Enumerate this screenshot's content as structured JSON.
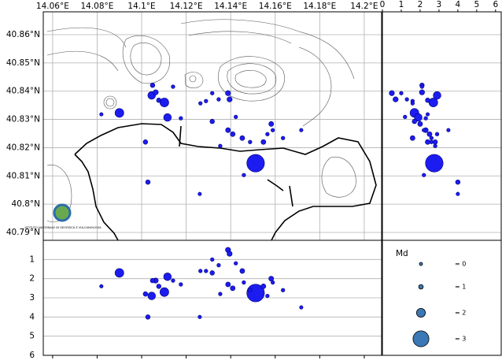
{
  "chart_data": {
    "type": "scatter",
    "x": [
      14.1512,
      14.09,
      14.1116,
      14.1102,
      14.1045,
      14.1063,
      14.1049,
      14.1077,
      14.1017,
      14.1028,
      14.0819,
      14.1261,
      14.1717,
      14.1388,
      14.1395,
      14.1317,
      14.1346,
      14.1423,
      14.1388,
      14.1409,
      14.1452,
      14.1582,
      14.1589,
      14.1547,
      14.1487,
      14.1317,
      14.1289,
      14.1459,
      14.1353,
      14.1264,
      14.1565,
      14.1141,
      14.1176,
      14.1635
    ],
    "y": [
      40.8145,
      40.8323,
      40.8307,
      40.836,
      40.8385,
      40.8396,
      40.8421,
      40.8368,
      40.822,
      40.8078,
      40.8318,
      40.8036,
      40.8262,
      40.8393,
      40.8371,
      40.8393,
      40.8371,
      40.8309,
      40.8262,
      40.8248,
      40.8234,
      40.8284,
      40.8262,
      40.822,
      40.822,
      40.8293,
      40.8365,
      40.8103,
      40.8206,
      40.8357,
      40.8248,
      40.8416,
      40.8304,
      40.8234
    ],
    "depth": [
      2.75,
      1.7,
      1.9,
      2.7,
      2.9,
      2.1,
      2.1,
      2.4,
      2.8,
      4.0,
      2.4,
      4.0,
      3.5,
      0.5,
      0.7,
      1.0,
      1.3,
      1.2,
      2.3,
      2.5,
      1.6,
      2.0,
      2.2,
      2.4,
      2.6,
      1.7,
      1.6,
      2.2,
      2.8,
      1.6,
      2.9,
      2.1,
      2.3,
      2.6
    ],
    "magnitude": [
      3.2,
      2,
      1.8,
      2,
      1.8,
      1.2,
      1,
      1,
      1,
      1,
      0.5,
      0.5,
      0.5,
      1.2,
      1.2,
      0.6,
      0.6,
      0.6,
      1.1,
      1.1,
      1.1,
      1.1,
      0.6,
      1.1,
      0.6,
      1,
      0.6,
      0.6,
      0.6,
      0.6,
      0.6,
      0.6,
      0.6,
      0.6
    ],
    "color": "#1c1cf0",
    "xlim": [
      14.0558,
      14.2078
    ],
    "ylim": [
      40.7872,
      40.8681
    ],
    "xticks": [
      {
        "value": 14.06,
        "label": "14.06°E"
      },
      {
        "value": 14.08,
        "label": "14.08°E"
      },
      {
        "value": 14.1,
        "label": "14.1°E"
      },
      {
        "value": 14.12,
        "label": "14.12°E"
      },
      {
        "value": 14.14,
        "label": "14.14°E"
      },
      {
        "value": 14.16,
        "label": "14.16°E"
      },
      {
        "value": 14.18,
        "label": "14.18°E"
      },
      {
        "value": 14.2,
        "label": "14.2°E"
      }
    ],
    "yticks": [
      {
        "value": 40.79,
        "label": "40.79°N"
      },
      {
        "value": 40.8,
        "label": "40.8°N"
      },
      {
        "value": 40.81,
        "label": "40.81°N"
      },
      {
        "value": 40.82,
        "label": "40.82°N"
      },
      {
        "value": 40.83,
        "label": "40.83°N"
      },
      {
        "value": 40.84,
        "label": "40.84°N"
      },
      {
        "value": 40.85,
        "label": "40.85°N"
      },
      {
        "value": 40.86,
        "label": "40.86°N"
      }
    ],
    "zlim": [
      0,
      6
    ],
    "zticks": [
      1,
      2,
      3,
      4,
      5,
      6
    ],
    "z2lim": [
      0,
      6.3
    ],
    "z2ticks": [
      0,
      1,
      2,
      3,
      4,
      5,
      6
    ],
    "grid": true,
    "size_legend": {
      "title": "Md",
      "values": [
        0,
        1,
        2,
        3
      ],
      "labels": [
        "= 0",
        "= 1",
        "= 2",
        "= 3"
      ],
      "color": "#3b78b5"
    },
    "logo_text": "ISTITUTO NAZIONALE DI GEOFISICA E VULCANOLOGIA"
  }
}
